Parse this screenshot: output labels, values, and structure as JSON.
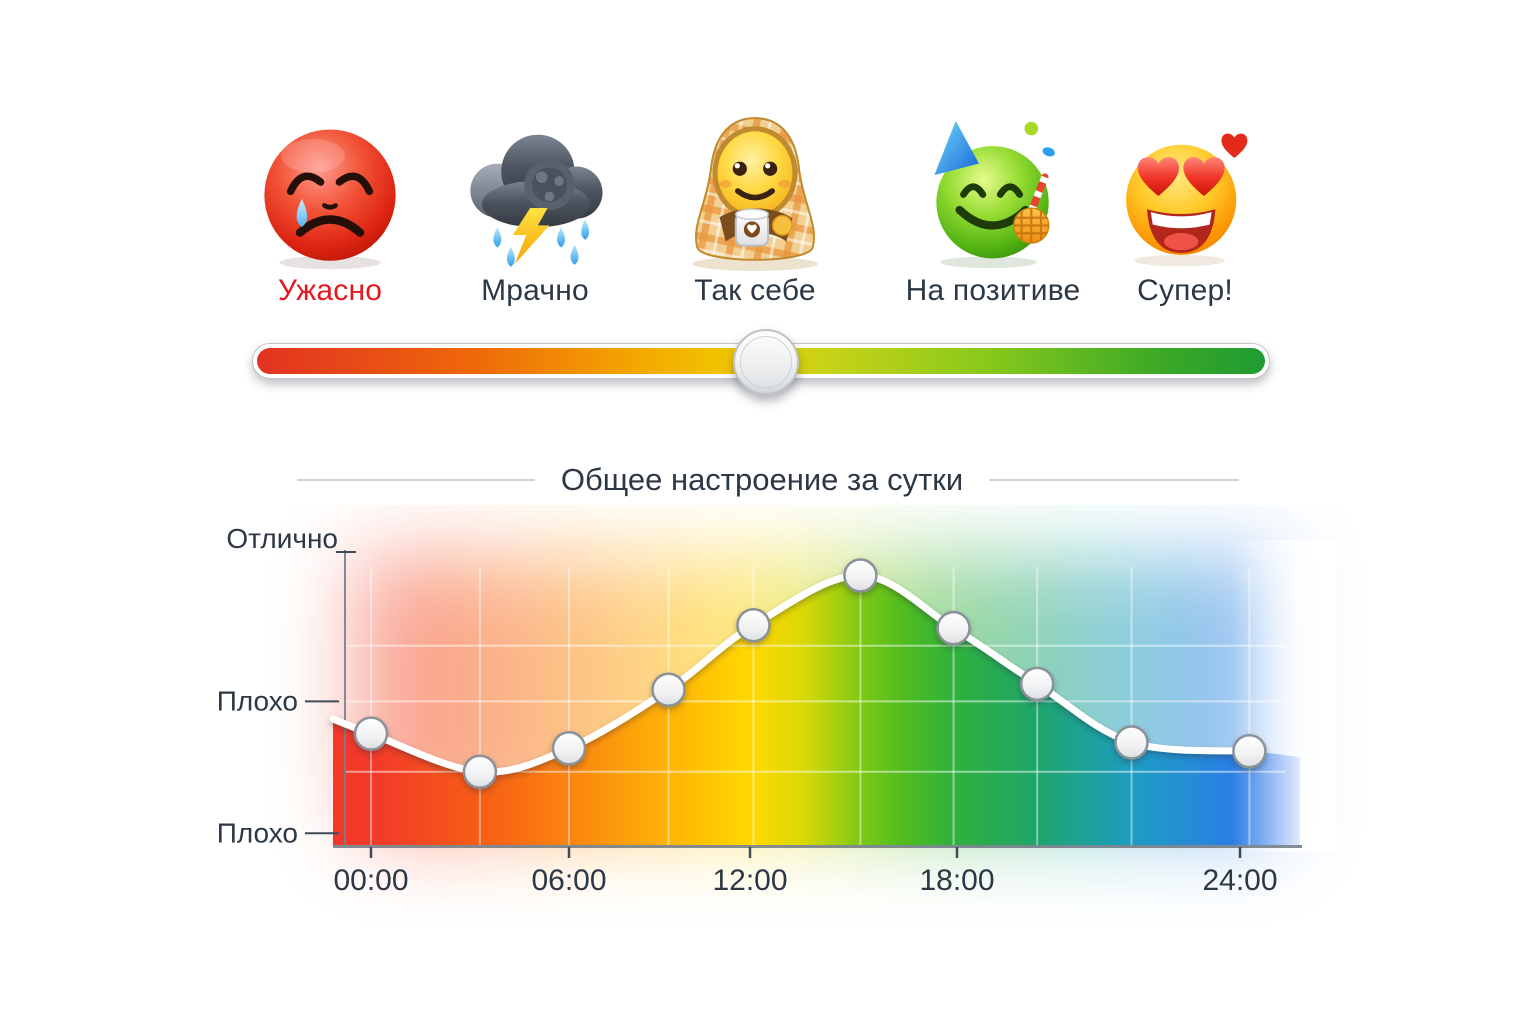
{
  "page": {
    "background": "#ffffff"
  },
  "mood_picker": {
    "options": [
      {
        "label": "Ужасно",
        "label_color": "#e3191e",
        "icon": "crying-red-face-icon"
      },
      {
        "label": "Мрачно",
        "label_color": "#2c3845",
        "icon": "storm-cloud-icon"
      },
      {
        "label": "Так себе",
        "label_color": "#2c3845",
        "icon": "blanket-face-icon"
      },
      {
        "label": "На позитиве",
        "label_color": "#2c3845",
        "icon": "party-green-face-icon"
      },
      {
        "label": "Супер!",
        "label_color": "#2c3845",
        "icon": "heart-eyes-face-icon"
      }
    ]
  },
  "slider": {
    "handle_position_pct": 50.3,
    "gradient_colors": [
      "#e23222",
      "#f3a900",
      "#f0c900",
      "#c6d318",
      "#8ac91b",
      "#1f9c33"
    ]
  },
  "chart": {
    "title": "Общее настроение за сутки"
  },
  "chart_data": {
    "type": "line",
    "title": "Общее настроение за сутки",
    "xlabel": "",
    "ylabel": "",
    "x_tick_labels": [
      "00:00",
      "06:00",
      "12:00",
      "18:00",
      "24:00"
    ],
    "x_tick_hours": [
      0,
      6,
      12,
      18,
      24
    ],
    "y_tick_labels": [
      "Отлично",
      "Плохо",
      "Плохо"
    ],
    "y_tick_values": [
      100,
      49,
      4
    ],
    "y_gridline_values": [
      68,
      49,
      25
    ],
    "ylim": [
      0,
      100
    ],
    "xlim_hours": [
      0,
      24.2
    ],
    "grid": true,
    "legend": "none",
    "line_color": "#ffffff",
    "marker": "white-circle",
    "rainbow_colors": [
      "#f2392a",
      "#f75d15",
      "#fb8410",
      "#ffb306",
      "#ffd900",
      "#d8d806",
      "#7cc814",
      "#4fbc20",
      "#30b13c",
      "#1ea56b",
      "#1d9dc2",
      "#2b7de6",
      "#2f72ec"
    ],
    "points": [
      {
        "hour": 0,
        "value": 38
      },
      {
        "hour": 3.3,
        "value": 25
      },
      {
        "hour": 6,
        "value": 33
      },
      {
        "hour": 9.3,
        "value": 53
      },
      {
        "hour": 12.1,
        "value": 75
      },
      {
        "hour": 15.2,
        "value": 92
      },
      {
        "hour": 17.9,
        "value": 74
      },
      {
        "hour": 19.7,
        "value": 55
      },
      {
        "hour": 21.7,
        "value": 35
      },
      {
        "hour": 24.2,
        "value": 32
      }
    ]
  }
}
